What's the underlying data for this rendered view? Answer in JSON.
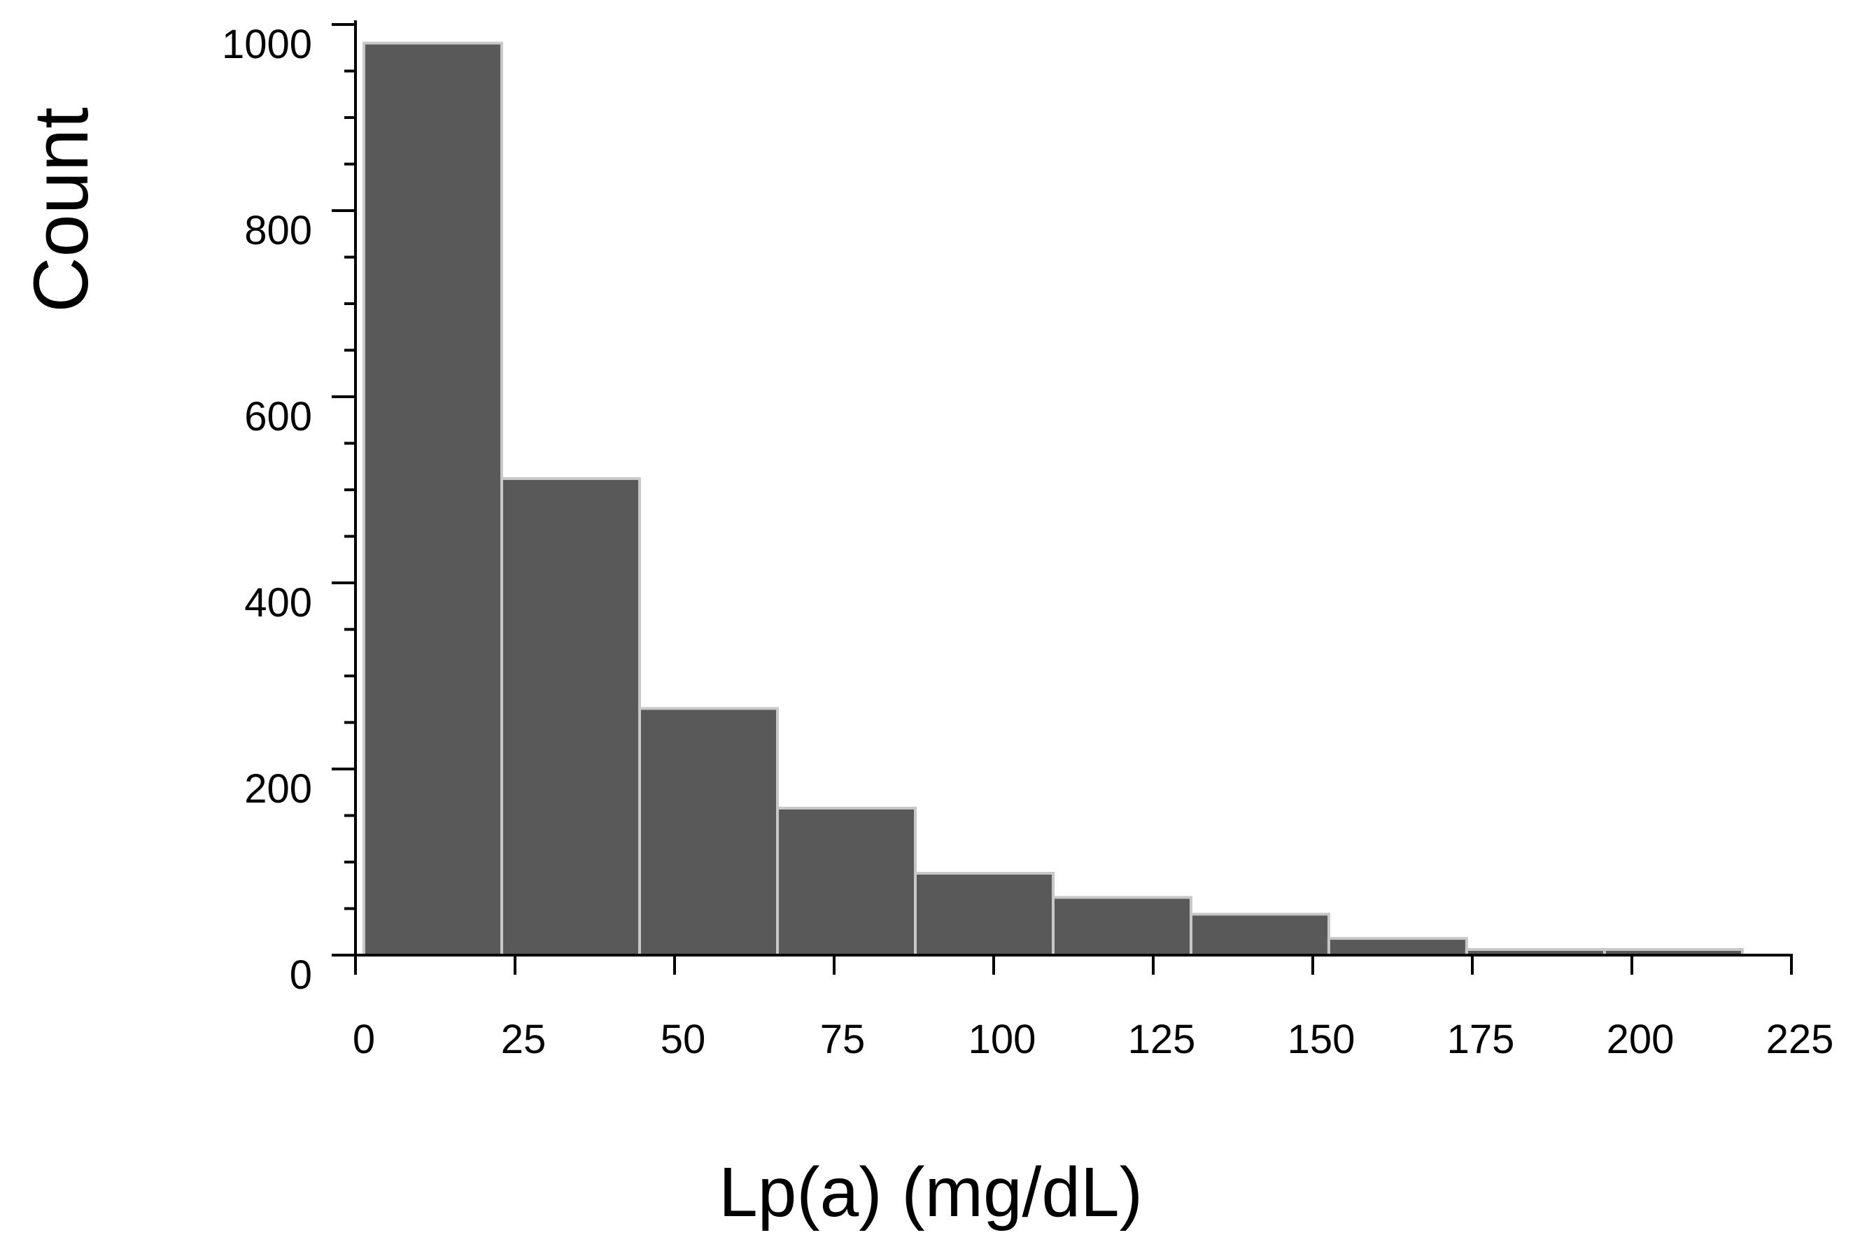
{
  "chart_data": {
    "type": "bar",
    "title": "",
    "xlabel": "Lp(a) (mg/dL)",
    "ylabel": "Count",
    "xlim": [
      0,
      225
    ],
    "ylim": [
      0,
      1000
    ],
    "x_ticks": [
      "0",
      "25",
      "50",
      "75",
      "100",
      "125",
      "150",
      "175",
      "200",
      "225"
    ],
    "y_ticks": [
      "0",
      "200",
      "400",
      "600",
      "800",
      "1000"
    ],
    "grid": false,
    "legend": "none",
    "bin_width": 21.6,
    "categories": [
      "0-21.6",
      "21.6-43.2",
      "43.2-64.8",
      "64.8-86.4",
      "86.4-108",
      "108-129.6",
      "129.6-151.2",
      "151.2-172.8",
      "172.8-194.4",
      "194.4-216"
    ],
    "values": [
      980,
      512,
      265,
      158,
      88,
      62,
      44,
      18,
      6,
      6
    ],
    "colors": {
      "bar_fill": "#595959",
      "bar_edge": "#c8c8c8",
      "axis": "#000000"
    }
  }
}
